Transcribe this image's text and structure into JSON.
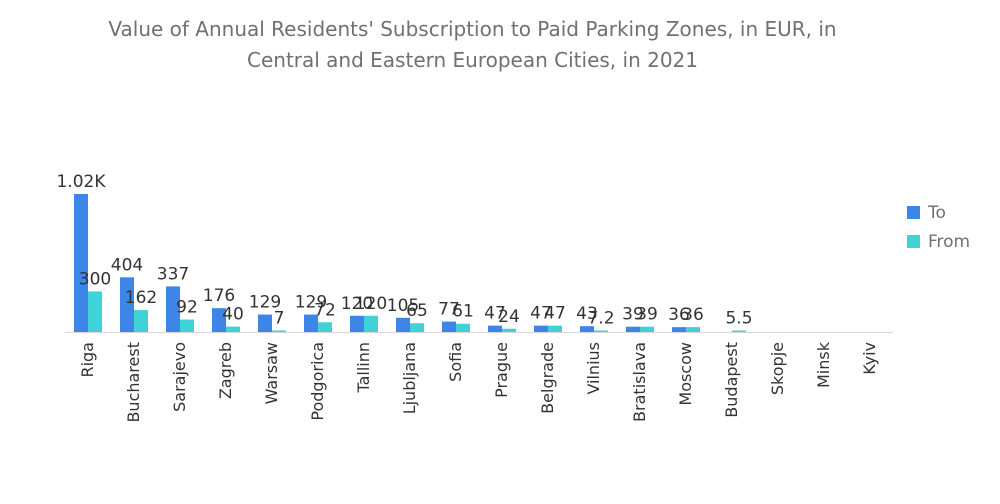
{
  "chart_data": {
    "type": "bar",
    "title_lines": [
      "Value of Annual Residents' Subscription to Paid Parking Zones, in EUR, in",
      "Central and Eastern European Cities, in 2021"
    ],
    "categories": [
      "Riga",
      "Bucharest",
      "Sarajevo",
      "Zagreb",
      "Warsaw",
      "Podgorica",
      "Tallinn",
      "Ljubljana",
      "Sofia",
      "Prague",
      "Belgrade",
      "Vilnius",
      "Bratislava",
      "Moscow",
      "Budapest",
      "Skopje",
      "Minsk",
      "Kyiv"
    ],
    "series": [
      {
        "name": "To",
        "color": "#3d85e6",
        "values": [
          1020,
          404,
          337,
          176,
          129,
          129,
          120,
          105,
          77,
          47,
          47,
          43,
          39,
          36,
          null,
          null,
          null,
          null
        ],
        "labels": [
          "1.02K",
          "404",
          "337",
          "176",
          "129",
          "129",
          "120",
          "105",
          "77",
          "47",
          "47",
          "43",
          "39",
          "36",
          "",
          "",
          "",
          ""
        ]
      },
      {
        "name": "From",
        "color": "#3fd3d8",
        "values": [
          300,
          162,
          92,
          40,
          7,
          72,
          120,
          65,
          61,
          24,
          47,
          7.2,
          39,
          36,
          5.5,
          null,
          null,
          null
        ],
        "labels": [
          "300",
          "162",
          "92",
          "40",
          "7",
          "72",
          "120",
          "65",
          "61",
          "24",
          "47",
          "7.2",
          "39",
          "36",
          "5.5",
          "",
          "",
          ""
        ]
      }
    ],
    "ylim": [
      0,
      1020
    ],
    "xlabel": "",
    "ylabel": "",
    "grid": false,
    "legend_position": "right"
  },
  "legend": [
    {
      "label": "To",
      "color": "#3d85e6"
    },
    {
      "label": "From",
      "color": "#3fd3d8"
    }
  ],
  "colors": {
    "axis": "#d6d6d6",
    "text": "#707070",
    "label": "#333333"
  }
}
